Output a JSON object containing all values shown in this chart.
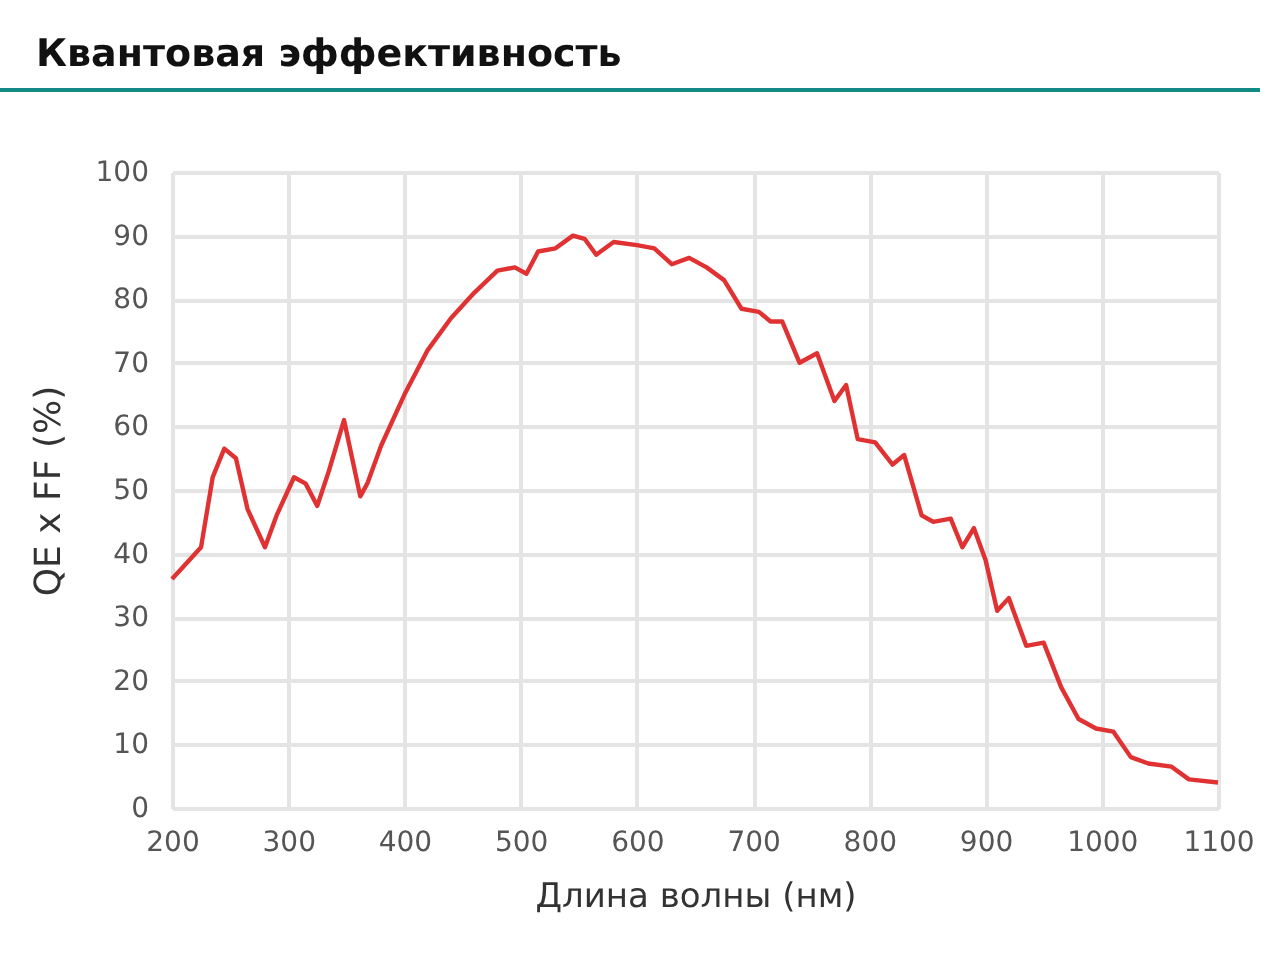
{
  "chart_data": {
    "type": "line",
    "title": "Квантовая эффективность",
    "xlabel": "Длина волны (нм)",
    "ylabel": "QE x FF (%)",
    "x": [
      200,
      215,
      225,
      235,
      245,
      255,
      265,
      280,
      290,
      305,
      315,
      325,
      335,
      348,
      355,
      362,
      368,
      380,
      400,
      420,
      440,
      460,
      480,
      495,
      505,
      515,
      530,
      545,
      555,
      565,
      580,
      600,
      615,
      630,
      645,
      660,
      675,
      690,
      705,
      715,
      725,
      740,
      755,
      770,
      780,
      790,
      805,
      820,
      830,
      845,
      855,
      870,
      880,
      890,
      900,
      910,
      920,
      935,
      950,
      965,
      980,
      995,
      1010,
      1025,
      1040,
      1060,
      1075,
      1100
    ],
    "series": [
      {
        "color": "#e03232",
        "values": [
          36,
          39,
          41,
          52,
          56.5,
          55,
          47,
          41,
          46,
          52,
          51,
          47.5,
          53,
          61,
          55,
          49,
          51,
          57,
          65,
          72,
          77,
          81,
          84.5,
          85,
          84,
          87.5,
          88,
          90,
          89.5,
          87,
          89,
          88.5,
          88,
          85.5,
          86.5,
          85,
          83,
          78.5,
          78,
          76.5,
          76.5,
          70,
          71.5,
          64,
          66.5,
          58,
          57.5,
          54,
          55.5,
          46,
          45,
          45.5,
          41,
          44,
          39,
          31,
          33,
          25.5,
          26,
          19,
          14,
          12.5,
          12,
          8,
          7,
          6.5,
          4.5,
          4
        ]
      }
    ],
    "xlim": [
      200,
      1100
    ],
    "xticks": [
      200,
      300,
      400,
      500,
      600,
      700,
      800,
      900,
      1000,
      1100
    ],
    "ylim": [
      0,
      100
    ],
    "yticks": [
      0,
      10,
      20,
      30,
      40,
      50,
      60,
      70,
      80,
      90,
      100
    ],
    "grid": true,
    "marker": "none",
    "line_style": "solid"
  }
}
